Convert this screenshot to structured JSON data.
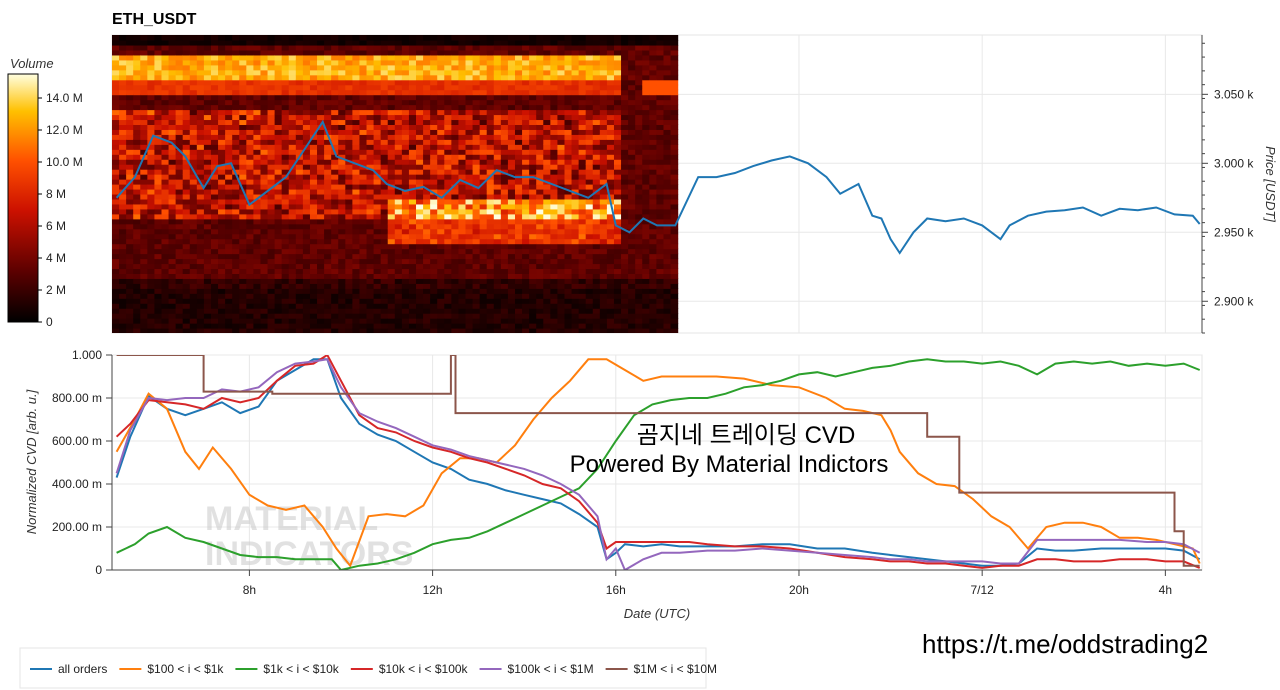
{
  "title": "ETH_USDT",
  "colorbar": {
    "label": "Volume",
    "ticks": [
      "14.0 M",
      "12.0 M",
      "10.0 M",
      "8 M",
      "6 M",
      "4 M",
      "2 M",
      "0"
    ],
    "values": [
      14,
      12,
      10,
      8,
      6,
      4,
      2,
      0
    ]
  },
  "overlay": {
    "line1": "곰지네 트레이딩 CVD",
    "line2": "Powered By Material Indictors"
  },
  "url": "https://t.me/oddstrading2",
  "watermark": {
    "line1": "MATERIAL",
    "line2": "INDICATORS"
  },
  "colors": {
    "price": "#1f77b4",
    "all_orders": "#1f77b4",
    "100_1k": "#ff7f0e",
    "1k_10k": "#2ca02c",
    "10k_100k": "#d62728",
    "100k_1m": "#9467bd",
    "1m_10m": "#8c564b"
  },
  "chart_data": [
    {
      "type": "heatmap",
      "title": "ETH_USDT",
      "ylabel": "Price [USDT]",
      "y_ticks": [
        "3.050 k",
        "3.000 k",
        "2.950 k",
        "2.900 k"
      ],
      "y_tick_values": [
        3050,
        3000,
        2950,
        2900
      ],
      "ylim": [
        2877,
        3093
      ],
      "x_ticks": [
        "8h",
        "12h",
        "16h",
        "20h",
        "7/12",
        "4h"
      ],
      "x_tick_values": [
        8,
        12,
        16,
        20,
        24,
        28
      ],
      "xlim": [
        5,
        28.8
      ],
      "heatmap_end_hour": 17.35,
      "price_series": {
        "name": "Price",
        "x": [
          5.1,
          5.5,
          5.9,
          6.3,
          6.6,
          7.0,
          7.3,
          7.6,
          8.0,
          8.4,
          8.8,
          9.2,
          9.6,
          9.9,
          10.3,
          10.7,
          11.0,
          11.4,
          11.8,
          12.2,
          12.6,
          13.0,
          13.4,
          13.8,
          14.2,
          14.6,
          15.0,
          15.4,
          15.8,
          16.0,
          16.3,
          16.6,
          16.9,
          17.3,
          17.8,
          18.2,
          18.6,
          19.0,
          19.4,
          19.8,
          20.2,
          20.6,
          20.9,
          21.3,
          21.6,
          21.8,
          22.0,
          22.2,
          22.5,
          22.8,
          23.2,
          23.6,
          24.0,
          24.4,
          24.6,
          25.0,
          25.4,
          25.8,
          26.2,
          26.6,
          27.0,
          27.4,
          27.8,
          28.2,
          28.6,
          28.75
        ],
        "y": [
          2975,
          2990,
          3020,
          3015,
          3005,
          2982,
          2998,
          3000,
          2970,
          2980,
          2990,
          3010,
          3030,
          3005,
          3000,
          2995,
          2985,
          2980,
          2983,
          2975,
          2988,
          2982,
          2995,
          2990,
          2990,
          2985,
          2980,
          2975,
          2985,
          2955,
          2950,
          2960,
          2955,
          2955,
          2990,
          2990,
          2993,
          2998,
          3002,
          3005,
          3000,
          2990,
          2978,
          2985,
          2962,
          2960,
          2945,
          2935,
          2950,
          2960,
          2958,
          2960,
          2955,
          2945,
          2955,
          2962,
          2965,
          2966,
          2968,
          2962,
          2967,
          2966,
          2968,
          2963,
          2962,
          2956
        ]
      }
    },
    {
      "type": "line",
      "xlabel": "Date (UTC)",
      "ylabel": "Normalized CVD [arb. u.]",
      "y_ticks": [
        "1.000",
        "800.00 m",
        "600.00 m",
        "400.00 m",
        "200.00 m",
        "0"
      ],
      "y_tick_values": [
        1.0,
        0.8,
        0.6,
        0.4,
        0.2,
        0.0
      ],
      "ylim": [
        0,
        1.0
      ],
      "x_ticks": [
        "8h",
        "12h",
        "16h",
        "20h",
        "7/12",
        "4h"
      ],
      "x_tick_values": [
        8,
        12,
        16,
        20,
        24,
        28
      ],
      "xlim": [
        5,
        28.8
      ],
      "series": [
        {
          "name": "all orders",
          "x": [
            5.1,
            5.4,
            5.8,
            6.2,
            6.6,
            7.0,
            7.4,
            7.8,
            8.2,
            8.6,
            9.0,
            9.4,
            9.7,
            10.0,
            10.4,
            10.8,
            11.2,
            11.6,
            12.0,
            12.4,
            12.8,
            13.2,
            13.6,
            14.0,
            14.4,
            14.8,
            15.2,
            15.6,
            15.8,
            16.0,
            16.2,
            16.6,
            17.0,
            17.4,
            18.0,
            18.6,
            19.2,
            19.8,
            20.4,
            21.0,
            21.6,
            22.0,
            22.4,
            22.8,
            23.2,
            23.6,
            24.0,
            24.4,
            24.8,
            25.2,
            25.6,
            26.0,
            26.6,
            27.0,
            27.6,
            28.0,
            28.4,
            28.75
          ],
          "y": [
            0.43,
            0.62,
            0.81,
            0.75,
            0.72,
            0.75,
            0.78,
            0.73,
            0.76,
            0.88,
            0.93,
            0.98,
            0.98,
            0.8,
            0.68,
            0.63,
            0.6,
            0.55,
            0.5,
            0.47,
            0.42,
            0.4,
            0.37,
            0.35,
            0.33,
            0.31,
            0.26,
            0.2,
            0.05,
            0.08,
            0.12,
            0.11,
            0.12,
            0.11,
            0.11,
            0.11,
            0.12,
            0.12,
            0.1,
            0.1,
            0.08,
            0.07,
            0.06,
            0.05,
            0.04,
            0.03,
            0.02,
            0.02,
            0.03,
            0.1,
            0.09,
            0.09,
            0.1,
            0.1,
            0.1,
            0.1,
            0.09,
            0.05
          ]
        },
        {
          "name": "$100 < i < $1k",
          "x": [
            5.1,
            5.5,
            5.8,
            6.2,
            6.6,
            6.9,
            7.2,
            7.6,
            8.0,
            8.4,
            8.8,
            9.2,
            9.6,
            9.9,
            10.2,
            10.6,
            11.0,
            11.4,
            11.8,
            12.2,
            12.6,
            13.0,
            13.4,
            13.8,
            14.2,
            14.6,
            15.0,
            15.4,
            15.8,
            16.2,
            16.6,
            17.0,
            17.6,
            18.2,
            18.8,
            19.4,
            20.0,
            20.6,
            21.0,
            21.4,
            21.8,
            22.0,
            22.2,
            22.6,
            23.0,
            23.4,
            23.8,
            24.2,
            24.6,
            25.0,
            25.4,
            25.8,
            26.2,
            26.6,
            27.0,
            27.4,
            27.8,
            28.2,
            28.6,
            28.75
          ],
          "y": [
            0.55,
            0.7,
            0.82,
            0.75,
            0.55,
            0.47,
            0.57,
            0.47,
            0.35,
            0.3,
            0.28,
            0.3,
            0.2,
            0.1,
            0.02,
            0.25,
            0.26,
            0.25,
            0.3,
            0.45,
            0.52,
            0.52,
            0.5,
            0.58,
            0.7,
            0.8,
            0.88,
            0.98,
            0.98,
            0.93,
            0.88,
            0.9,
            0.9,
            0.9,
            0.89,
            0.86,
            0.85,
            0.8,
            0.75,
            0.74,
            0.72,
            0.65,
            0.55,
            0.45,
            0.4,
            0.39,
            0.33,
            0.25,
            0.2,
            0.1,
            0.2,
            0.22,
            0.22,
            0.2,
            0.15,
            0.15,
            0.14,
            0.12,
            0.1,
            0.03
          ]
        },
        {
          "name": "$1k < i < $10k",
          "x": [
            5.1,
            5.5,
            5.8,
            6.2,
            6.6,
            7.0,
            7.4,
            7.8,
            8.2,
            8.6,
            9.0,
            9.4,
            9.8,
            10.0,
            10.4,
            10.8,
            11.2,
            11.6,
            12.0,
            12.4,
            12.8,
            13.2,
            13.6,
            14.0,
            14.4,
            14.8,
            15.2,
            15.6,
            16.0,
            16.4,
            16.8,
            17.2,
            17.6,
            18.0,
            18.4,
            18.8,
            19.2,
            19.6,
            20.0,
            20.4,
            20.8,
            21.2,
            21.6,
            22.0,
            22.4,
            22.8,
            23.2,
            23.6,
            24.0,
            24.4,
            24.8,
            25.2,
            25.6,
            26.0,
            26.4,
            26.8,
            27.2,
            27.6,
            28.0,
            28.4,
            28.75
          ],
          "y": [
            0.08,
            0.12,
            0.17,
            0.2,
            0.15,
            0.13,
            0.1,
            0.07,
            0.06,
            0.06,
            0.05,
            0.05,
            0.05,
            0.0,
            0.02,
            0.03,
            0.05,
            0.08,
            0.12,
            0.14,
            0.15,
            0.18,
            0.22,
            0.26,
            0.3,
            0.34,
            0.38,
            0.47,
            0.6,
            0.72,
            0.77,
            0.79,
            0.8,
            0.8,
            0.82,
            0.85,
            0.86,
            0.88,
            0.91,
            0.92,
            0.9,
            0.92,
            0.94,
            0.95,
            0.97,
            0.98,
            0.97,
            0.97,
            0.96,
            0.97,
            0.95,
            0.91,
            0.96,
            0.97,
            0.96,
            0.97,
            0.95,
            0.96,
            0.95,
            0.96,
            0.93
          ]
        },
        {
          "name": "$10k < i < $100k",
          "x": [
            5.1,
            5.4,
            5.8,
            6.2,
            6.6,
            7.0,
            7.4,
            7.8,
            8.2,
            8.6,
            9.0,
            9.4,
            9.7,
            10.0,
            10.4,
            10.8,
            11.2,
            11.6,
            12.0,
            12.4,
            12.8,
            13.2,
            13.6,
            14.0,
            14.4,
            14.8,
            15.2,
            15.6,
            15.8,
            16.0,
            16.4,
            16.8,
            17.2,
            17.6,
            18.0,
            18.6,
            19.2,
            19.8,
            20.4,
            21.0,
            21.6,
            22.0,
            22.4,
            22.8,
            23.2,
            23.6,
            24.0,
            24.4,
            24.8,
            25.2,
            25.6,
            26.0,
            26.6,
            27.0,
            27.6,
            28.0,
            28.4,
            28.75
          ],
          "y": [
            0.62,
            0.68,
            0.79,
            0.78,
            0.77,
            0.75,
            0.8,
            0.78,
            0.8,
            0.88,
            0.95,
            0.96,
            1.0,
            0.88,
            0.72,
            0.66,
            0.64,
            0.6,
            0.57,
            0.55,
            0.52,
            0.5,
            0.47,
            0.44,
            0.4,
            0.38,
            0.32,
            0.22,
            0.1,
            0.13,
            0.13,
            0.13,
            0.13,
            0.13,
            0.12,
            0.11,
            0.11,
            0.1,
            0.08,
            0.06,
            0.05,
            0.04,
            0.04,
            0.03,
            0.03,
            0.02,
            0.01,
            0.02,
            0.02,
            0.05,
            0.05,
            0.04,
            0.04,
            0.05,
            0.05,
            0.04,
            0.04,
            0.01
          ]
        },
        {
          "name": "$100k < i < $1M",
          "x": [
            5.1,
            5.4,
            5.8,
            6.2,
            6.6,
            7.0,
            7.4,
            7.8,
            8.2,
            8.6,
            9.0,
            9.4,
            9.7,
            10.0,
            10.4,
            10.8,
            11.2,
            11.6,
            12.0,
            12.4,
            12.8,
            13.2,
            13.6,
            14.0,
            14.4,
            14.8,
            15.2,
            15.6,
            15.8,
            16.0,
            16.2,
            16.6,
            17.0,
            17.4,
            18.0,
            18.6,
            19.2,
            19.8,
            20.4,
            21.0,
            21.6,
            22.0,
            22.4,
            22.8,
            23.2,
            23.6,
            24.0,
            24.4,
            24.8,
            25.2,
            25.6,
            26.0,
            26.6,
            27.0,
            27.6,
            28.0,
            28.4,
            28.75
          ],
          "y": [
            0.45,
            0.65,
            0.8,
            0.79,
            0.8,
            0.8,
            0.84,
            0.83,
            0.85,
            0.92,
            0.96,
            0.97,
            0.98,
            0.85,
            0.73,
            0.69,
            0.66,
            0.62,
            0.58,
            0.56,
            0.53,
            0.51,
            0.49,
            0.47,
            0.44,
            0.4,
            0.35,
            0.25,
            0.05,
            0.1,
            0.0,
            0.05,
            0.08,
            0.08,
            0.09,
            0.09,
            0.1,
            0.09,
            0.08,
            0.07,
            0.06,
            0.05,
            0.05,
            0.04,
            0.04,
            0.04,
            0.04,
            0.03,
            0.03,
            0.14,
            0.14,
            0.14,
            0.14,
            0.14,
            0.13,
            0.13,
            0.12,
            0.08
          ]
        },
        {
          "name": "$1M < i < $10M",
          "x": [
            5.1,
            7.0,
            7.0,
            8.5,
            8.5,
            12.4,
            12.4,
            12.5,
            12.5,
            22.8,
            22.8,
            23.5,
            23.5,
            28.2,
            28.2,
            28.4,
            28.4,
            28.75
          ],
          "y": [
            1.0,
            1.0,
            0.83,
            0.83,
            0.82,
            0.82,
            1.0,
            1.0,
            0.73,
            0.73,
            0.62,
            0.62,
            0.36,
            0.36,
            0.18,
            0.18,
            0.02,
            0.02
          ]
        }
      ]
    }
  ]
}
